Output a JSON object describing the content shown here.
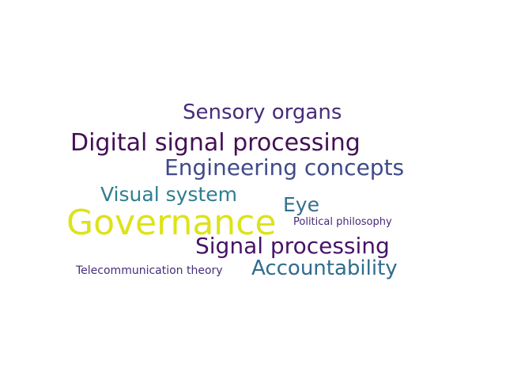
{
  "word_cloud": {
    "words": [
      {
        "key": "sensory",
        "text": "Sensory organs",
        "color": "#472c7a"
      },
      {
        "key": "digital",
        "text": "Digital signal processing",
        "color": "#440f55"
      },
      {
        "key": "engineering",
        "text": "Engineering concepts",
        "color": "#3f4a8a"
      },
      {
        "key": "visual",
        "text": "Visual system",
        "color": "#2e7e8e"
      },
      {
        "key": "eye",
        "text": "Eye",
        "color": "#33718e"
      },
      {
        "key": "governance",
        "text": "Governance",
        "color": "#dde318"
      },
      {
        "key": "political",
        "text": "Political philosophy",
        "color": "#482979"
      },
      {
        "key": "signal",
        "text": "Signal processing",
        "color": "#471365"
      },
      {
        "key": "telecom",
        "text": "Telecommunication theory",
        "color": "#472d7b"
      },
      {
        "key": "accountability",
        "text": "Accountability",
        "color": "#2f6c8e"
      }
    ]
  }
}
